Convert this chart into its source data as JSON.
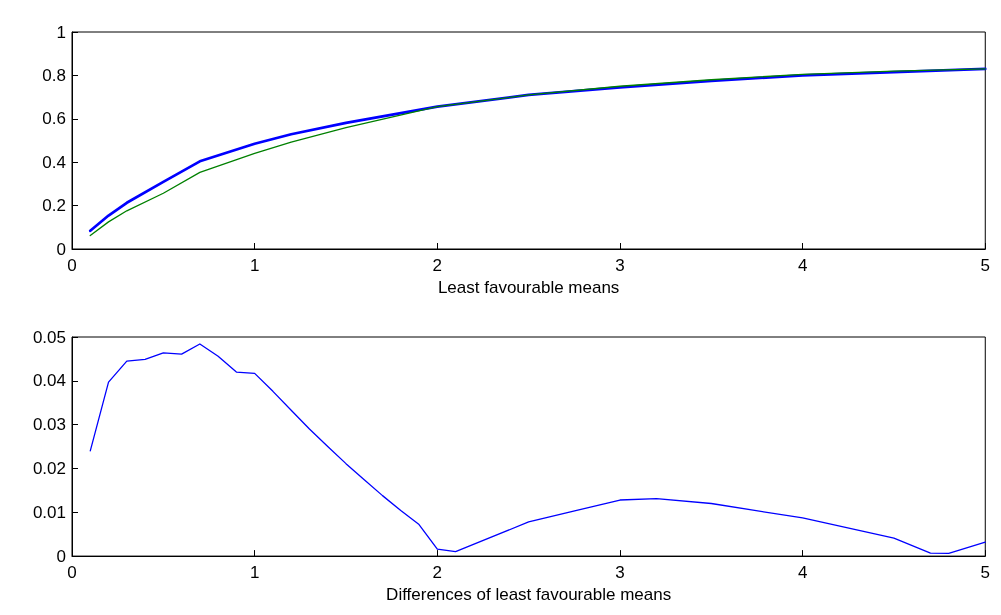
{
  "chart_data": [
    {
      "type": "line",
      "xlabel": "Least favourable means",
      "xlim": [
        0,
        5
      ],
      "xticks": [
        0,
        1,
        2,
        3,
        4,
        5
      ],
      "ylim": [
        0,
        1
      ],
      "yticks": [
        0,
        0.2,
        0.4,
        0.6,
        0.8,
        1
      ],
      "marker": "none",
      "line_style": "solid",
      "x": [
        0.1,
        0.2,
        0.3,
        0.5,
        0.7,
        1,
        1.2,
        1.5,
        2,
        2.5,
        3,
        3.5,
        4,
        4.5,
        5
      ],
      "series": [
        {
          "color": "#0000ff",
          "values": [
            0.084,
            0.154,
            0.213,
            0.309,
            0.404,
            0.485,
            0.529,
            0.581,
            0.656,
            0.71,
            0.745,
            0.775,
            0.8,
            0.815,
            0.83
          ]
        },
        {
          "color": "#008000",
          "values": [
            0.062,
            0.125,
            0.176,
            0.257,
            0.353,
            0.441,
            0.493,
            0.559,
            0.656,
            0.71,
            0.75,
            0.78,
            0.805,
            0.82,
            0.83
          ]
        }
      ]
    },
    {
      "type": "line",
      "xlabel": "Differences of least favourable means",
      "xlim": [
        0,
        5
      ],
      "xticks": [
        0,
        1,
        2,
        3,
        4,
        5
      ],
      "ylim": [
        0,
        0.05
      ],
      "yticks": [
        0,
        0.01,
        0.02,
        0.03,
        0.04,
        0.05
      ],
      "marker": "none",
      "line_style": "solid",
      "x": [
        0.1,
        0.2,
        0.3,
        0.4,
        0.5,
        0.6,
        0.7,
        0.8,
        0.9,
        1,
        1.1,
        1.2,
        1.3,
        1.4,
        1.5,
        1.6,
        1.7,
        1.8,
        1.9,
        2,
        2.1,
        2.5,
        3,
        3.2,
        3.5,
        4,
        4.5,
        4.7,
        4.8,
        5
      ],
      "series": [
        {
          "color": "#0000ff",
          "values": [
            0.024,
            0.0397,
            0.0445,
            0.0449,
            0.0464,
            0.0461,
            0.0484,
            0.0456,
            0.042,
            0.0417,
            0.0376,
            0.0333,
            0.029,
            0.025,
            0.0211,
            0.0174,
            0.0138,
            0.0104,
            0.0072,
            0.0016,
            0.001,
            0.0078,
            0.0128,
            0.0131,
            0.012,
            0.0087,
            0.0041,
            0.0007,
            0.0006,
            0.0032
          ]
        }
      ]
    }
  ]
}
